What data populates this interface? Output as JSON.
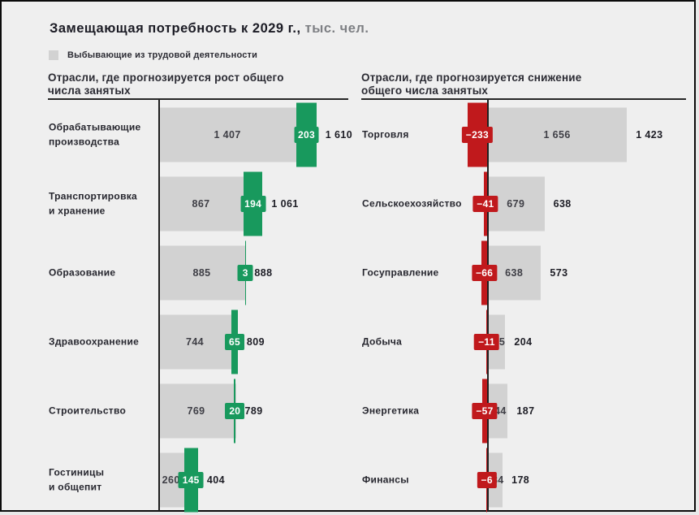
{
  "title": {
    "main": "Замещающая потребность к 2029 г.,",
    "unit": " тыс. чел."
  },
  "legend": {
    "label": "Выбывающие из трудовой деятельности"
  },
  "colors": {
    "positive": "#18995d",
    "negative": "#c0191c",
    "bar": "#d2d2d2",
    "axis": "#1f1f1f",
    "background": "#efefef"
  },
  "chart_data": {
    "type": "bar",
    "orientation": "horizontal-diverging",
    "title": "Замещающая потребность к 2029 г., тыс. чел.",
    "unit": "тыс. чел.",
    "legend_entries": [
      "Выбывающие из трудовой деятельности"
    ],
    "columns": [
      {
        "header": "Отрасли, где прогнозируется рост общего\nчисла занятых",
        "direction": "growth",
        "rows": [
          {
            "label": "Обрабатывающие\nпроизводства",
            "base": 1407,
            "base_label": "1 407",
            "delta": 203,
            "delta_label": "203",
            "total": 1610,
            "total_label": "1 610"
          },
          {
            "label": "Транспортировка\nи хранение",
            "base": 867,
            "base_label": "867",
            "delta": 194,
            "delta_label": "194",
            "total": 1061,
            "total_label": "1 061"
          },
          {
            "label": "Образование",
            "base": 885,
            "base_label": "885",
            "delta": 3,
            "delta_label": "3",
            "total": 888,
            "total_label": "888"
          },
          {
            "label": "Здравоохранение",
            "base": 744,
            "base_label": "744",
            "delta": 65,
            "delta_label": "65",
            "total": 809,
            "total_label": "809"
          },
          {
            "label": "Строительство",
            "base": 769,
            "base_label": "769",
            "delta": 20,
            "delta_label": "20",
            "total": 789,
            "total_label": "789"
          },
          {
            "label": "Гостиницы\nи общепит",
            "base": 260,
            "base_label": "260",
            "delta": 145,
            "delta_label": "145",
            "total": 404,
            "total_label": "404"
          }
        ]
      },
      {
        "header": "Отрасли, где прогнозируется снижение\nобщего числа занятых",
        "direction": "decline",
        "rows": [
          {
            "label": "Торговля",
            "base": 1656,
            "base_label": "1 656",
            "delta": -233,
            "delta_label": "−233",
            "total": 1423,
            "total_label": "1 423"
          },
          {
            "label": "Сельскоехозяйство",
            "base": 679,
            "base_label": "679",
            "delta": -41,
            "delta_label": "−41",
            "total": 638,
            "total_label": "638"
          },
          {
            "label": "Госуправление",
            "base": 638,
            "base_label": "638",
            "delta": -66,
            "delta_label": "−66",
            "total": 573,
            "total_label": "573"
          },
          {
            "label": "Добыча",
            "base": 215,
            "base_label": "215",
            "delta": -11,
            "delta_label": "−11",
            "total": 204,
            "total_label": "204"
          },
          {
            "label": "Энергетика",
            "base": 244,
            "base_label": "244",
            "delta": -57,
            "delta_label": "−57",
            "total": 187,
            "total_label": "187"
          },
          {
            "label": "Финансы",
            "base": 184,
            "base_label": "184",
            "delta": -6,
            "delta_label": "−6",
            "total": 178,
            "total_label": "178"
          }
        ]
      }
    ]
  }
}
